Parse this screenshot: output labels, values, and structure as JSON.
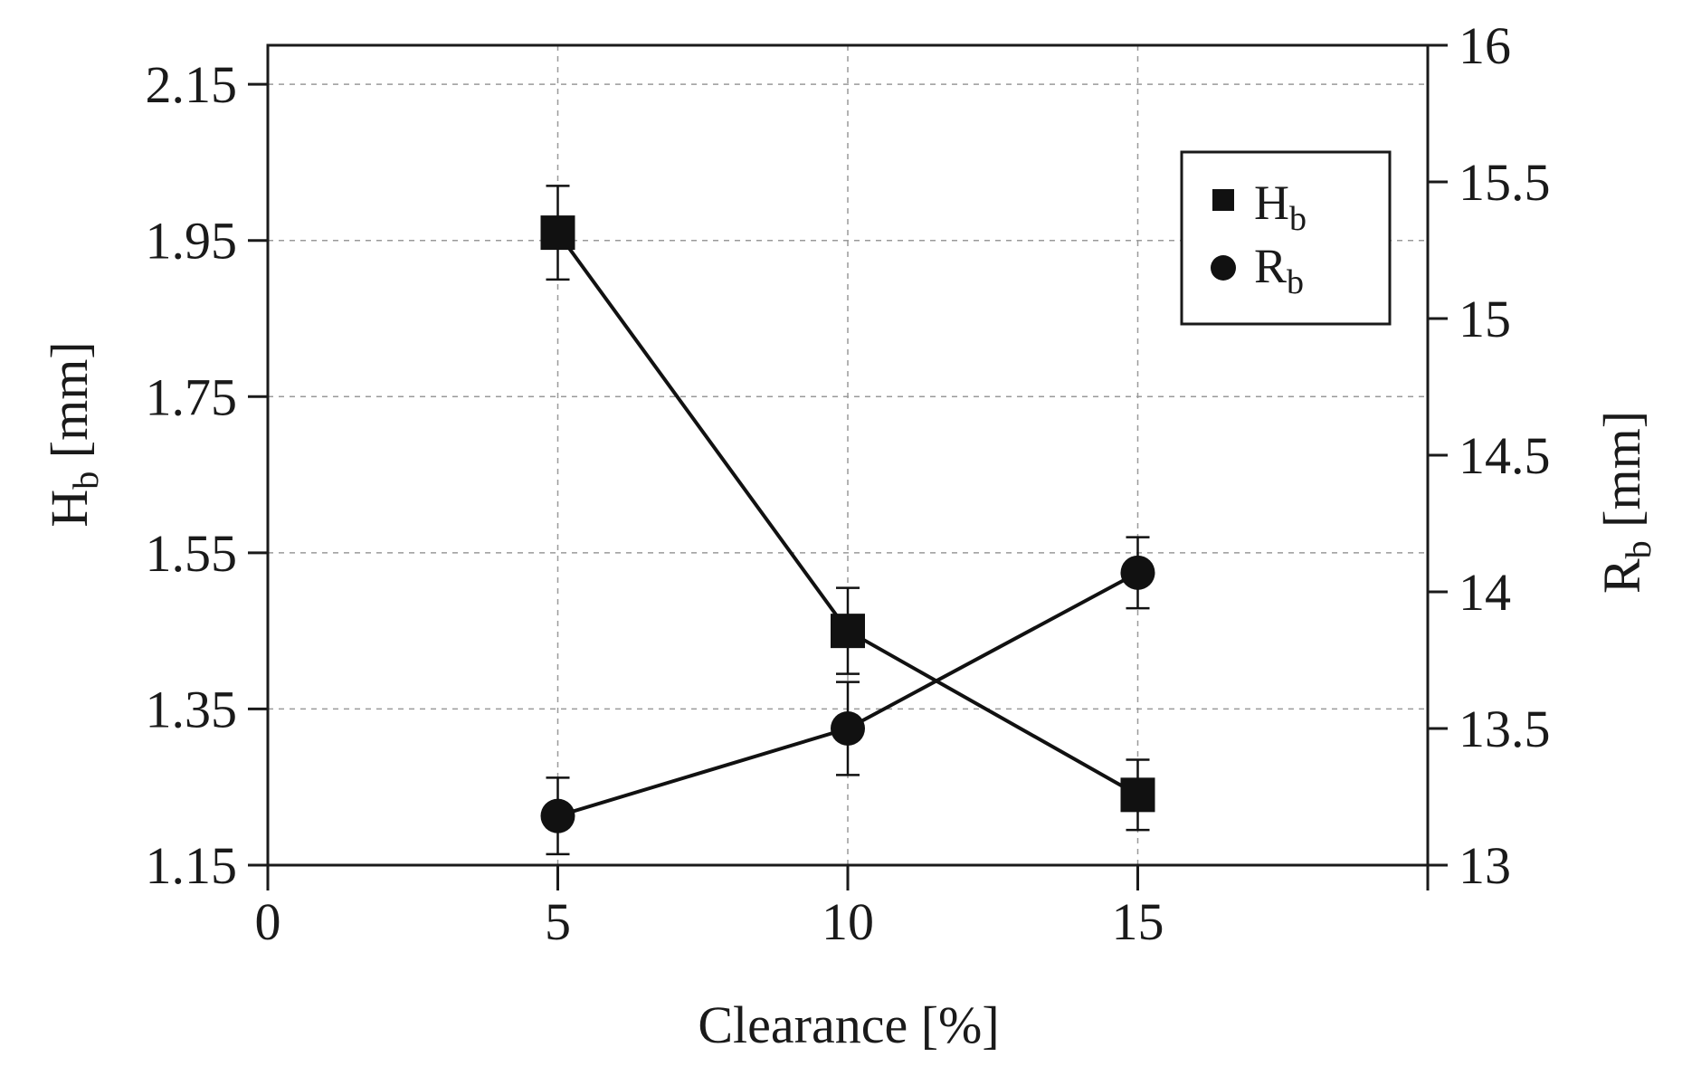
{
  "chart_data": {
    "type": "line",
    "x_axis": {
      "label": "Clearance [%]",
      "range": [
        0,
        20
      ],
      "ticks": [
        0,
        5,
        10,
        15
      ],
      "tick_labels": [
        "0",
        "5",
        "10",
        "15"
      ]
    },
    "y_axis_left": {
      "label_main": "H",
      "label_sub": "b",
      "label_unit": " [mm]",
      "range": [
        1.15,
        2.2
      ],
      "ticks": [
        1.15,
        1.35,
        1.55,
        1.75,
        1.95,
        2.15
      ],
      "tick_labels": [
        "1.15",
        "1.35",
        "1.55",
        "1.75",
        "1.95",
        "2.15"
      ]
    },
    "y_axis_right": {
      "label_main": "R",
      "label_sub": "b",
      "label_unit": " [mm]",
      "range": [
        13,
        16
      ],
      "ticks": [
        13,
        13.5,
        14,
        14.5,
        15,
        15.5,
        16
      ],
      "tick_labels": [
        "13",
        "13.5",
        "14",
        "14.5",
        "15",
        "15.5",
        "16"
      ]
    },
    "grid": true,
    "legend_position": "top-right",
    "series": [
      {
        "name_main": "H",
        "name_sub": "b",
        "axis": "left",
        "marker": "square",
        "x": [
          5,
          10,
          15
        ],
        "y": [
          1.96,
          1.45,
          1.24
        ],
        "error": [
          0.06,
          0.055,
          0.045
        ]
      },
      {
        "name_main": "R",
        "name_sub": "b",
        "axis": "right",
        "marker": "circle",
        "x": [
          5,
          10,
          15
        ],
        "y": [
          13.18,
          13.5,
          14.07
        ],
        "error": [
          0.14,
          0.17,
          0.13
        ]
      }
    ],
    "colors": {
      "line": "#111111",
      "grid": "#9a9a9a",
      "axis": "#1a1a1a"
    }
  }
}
